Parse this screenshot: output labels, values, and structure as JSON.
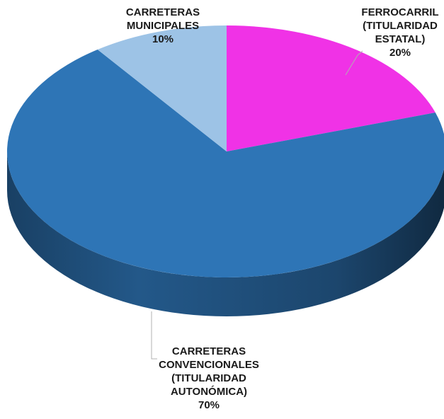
{
  "chart_data": {
    "type": "pie",
    "three_d": true,
    "title": "",
    "slices": [
      {
        "label_lines": [
          "FERROCARRIL",
          "(TITULARIDAD",
          "ESTATAL)"
        ],
        "value": 20,
        "value_label": "20%",
        "color": "#f032e6"
      },
      {
        "label_lines": [
          "CARRETERAS",
          "CONVENCIONALES",
          "(TITULARIDAD",
          "AUTONÓMICA)"
        ],
        "value": 70,
        "value_label": "70%",
        "color": "#2e75b6"
      },
      {
        "label_lines": [
          "CARRETERAS",
          "MUNICIPALES"
        ],
        "value": 10,
        "value_label": "10%",
        "color": "#9dc3e6"
      }
    ],
    "legend": "none"
  }
}
